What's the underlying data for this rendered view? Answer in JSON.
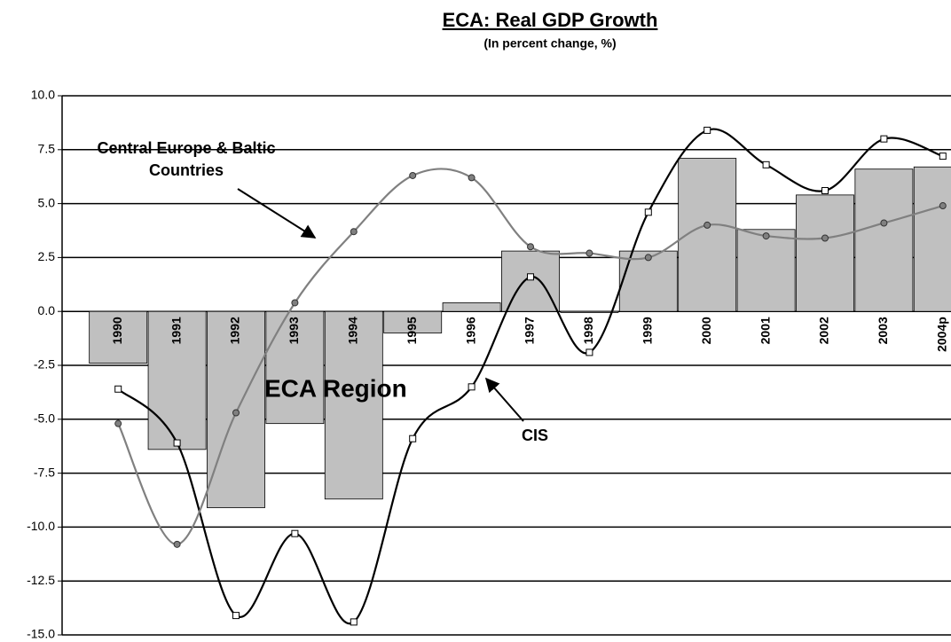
{
  "chart_data": {
    "type": "bar",
    "title": "ECA: Real GDP Growth",
    "subtitle": "(In percent change, %)",
    "categories": [
      "1990",
      "1991",
      "1992",
      "1993",
      "1994",
      "1995",
      "1996",
      "1997",
      "1998",
      "1999",
      "2000",
      "2001",
      "2002",
      "2003",
      "2004p"
    ],
    "series": [
      {
        "name": "ECA  Region",
        "type": "bar",
        "color": "#c0c0c0",
        "values": [
          -2.4,
          -6.4,
          -9.1,
          -5.2,
          -8.7,
          -1.0,
          0.4,
          2.8,
          -0.05,
          2.8,
          7.1,
          3.8,
          5.4,
          6.6,
          6.7
        ]
      },
      {
        "name": "CIS",
        "type": "line",
        "color": "#000000",
        "marker": "square",
        "values": [
          -3.6,
          -6.1,
          -14.1,
          -10.3,
          -14.4,
          -5.9,
          -3.5,
          1.6,
          -1.9,
          4.6,
          8.4,
          6.8,
          5.6,
          8.0,
          7.2
        ]
      },
      {
        "name": "Central Europe & Baltic Countries",
        "type": "line",
        "color": "#808080",
        "marker": "circle",
        "values": [
          -5.2,
          -10.8,
          -4.7,
          0.4,
          3.7,
          6.3,
          6.2,
          3.0,
          2.7,
          2.5,
          4.0,
          3.5,
          3.4,
          4.1,
          4.9
        ]
      }
    ],
    "ylim": [
      -15,
      10
    ],
    "yticks": [
      {
        "value": -15,
        "label": "-15.0"
      },
      {
        "value": -12.5,
        "label": "-12.5"
      },
      {
        "value": -10,
        "label": "-10.0"
      },
      {
        "value": -7.5,
        "label": "-7.5"
      },
      {
        "value": -5,
        "label": "-5.0"
      },
      {
        "value": -2.5,
        "label": "-2.5"
      },
      {
        "value": 0,
        "label": "0.0"
      },
      {
        "value": 2.5,
        "label": "2.5"
      },
      {
        "value": 5,
        "label": "5.0"
      },
      {
        "value": 7.5,
        "label": "7.5"
      },
      {
        "value": 10,
        "label": "10.0"
      }
    ],
    "grid": true
  }
}
